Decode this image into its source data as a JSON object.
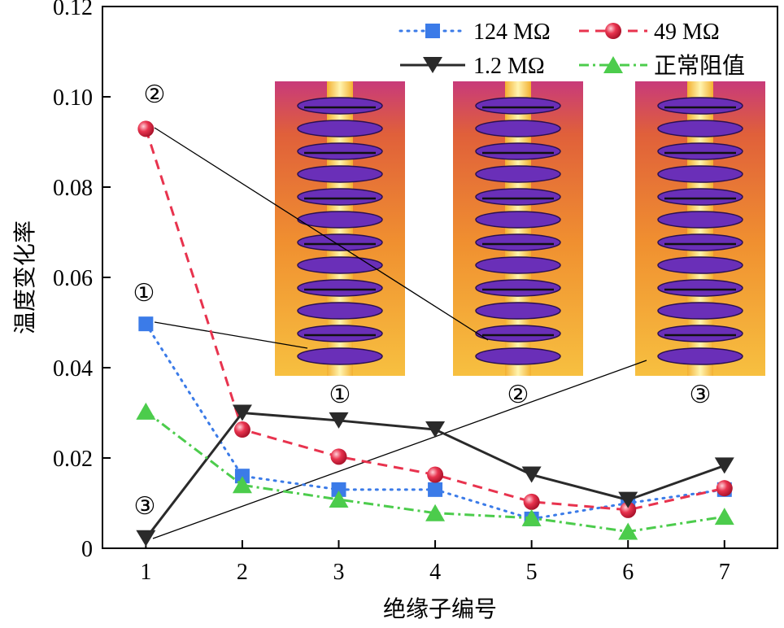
{
  "chart_data": {
    "type": "line",
    "xlabel": "绝缘子编号",
    "ylabel": "温度变化率",
    "xlim": [
      0.55,
      7.55
    ],
    "ylim": [
      0,
      0.12
    ],
    "x": [
      1,
      2,
      3,
      4,
      5,
      6,
      7
    ],
    "x_tick_labels": [
      "1",
      "2",
      "3",
      "4",
      "5",
      "6",
      "7"
    ],
    "y_ticks": [
      0,
      0.02,
      0.04,
      0.06,
      0.08,
      0.1,
      0.12
    ],
    "y_tick_labels": [
      "0",
      "0.02",
      "0.04",
      "0.06",
      "0.08",
      "0.10",
      "0.12"
    ],
    "series": [
      {
        "name": "124 MΩ",
        "marker": "square",
        "line": "dotted",
        "color": "#3b7be8",
        "values": [
          0.0497,
          0.016,
          0.013,
          0.013,
          0.0065,
          0.01,
          0.013
        ]
      },
      {
        "name": "49 MΩ",
        "marker": "circle",
        "line": "dashed",
        "color": "#e8334e",
        "values": [
          0.0929,
          0.0263,
          0.0203,
          0.0163,
          0.0103,
          0.0085,
          0.0133
        ]
      },
      {
        "name": "1.2 MΩ",
        "marker": "triangle-down",
        "line": "solid",
        "color": "#2a2a2a",
        "values": [
          0.0022,
          0.03,
          0.0283,
          0.0263,
          0.0163,
          0.0107,
          0.0183
        ]
      },
      {
        "name": "正常阻值",
        "marker": "triangle-up",
        "line": "dashdot",
        "color": "#4ccc4c",
        "values": [
          0.0303,
          0.014,
          0.0108,
          0.0078,
          0.0067,
          0.0037,
          0.007
        ]
      }
    ],
    "legend_position": "top-right",
    "annotations": [
      {
        "label": "①",
        "point_x": 1,
        "series": "124 MΩ",
        "links_to_image": "①"
      },
      {
        "label": "②",
        "point_x": 1,
        "series": "49 MΩ",
        "links_to_image": "②"
      },
      {
        "label": "③",
        "point_x": 1,
        "series": "1.2 MΩ",
        "links_to_image": "③"
      }
    ],
    "inset_images": [
      {
        "caption": "①",
        "description": "infrared-insulator-string"
      },
      {
        "caption": "②",
        "description": "infrared-insulator-string"
      },
      {
        "caption": "③",
        "description": "infrared-insulator-string"
      }
    ]
  }
}
